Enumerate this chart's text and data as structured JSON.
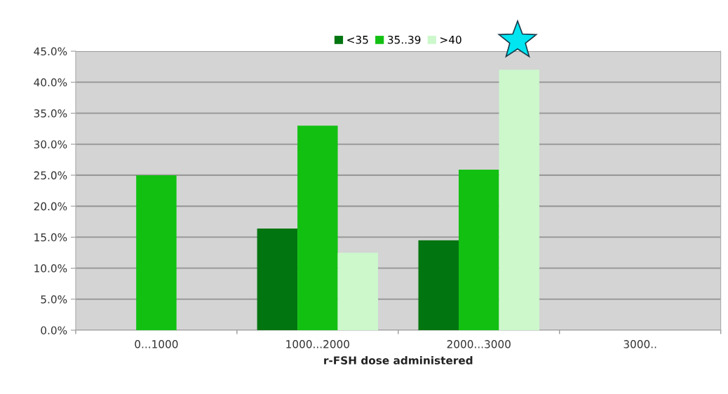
{
  "chart_data": {
    "type": "bar",
    "xlabel": "r-FSH dose administered",
    "categories": [
      "0...1000",
      "1000...2000",
      "2000...3000",
      "3000.."
    ],
    "series": [
      {
        "name": "<35",
        "color": "#007510",
        "values": [
          null,
          16.4,
          14.5,
          null
        ]
      },
      {
        "name": "35..39",
        "color": "#12c012",
        "values": [
          25.0,
          33.0,
          25.9,
          null
        ]
      },
      {
        "name": ">40",
        "color": "#ccf8cc",
        "values": [
          null,
          12.5,
          42.0,
          null
        ]
      }
    ],
    "ylim": [
      0,
      45
    ],
    "yticks": [
      {
        "value": 0,
        "label": "0.0%"
      },
      {
        "value": 5,
        "label": "5.0%"
      },
      {
        "value": 10,
        "label": "10.0%"
      },
      {
        "value": 15,
        "label": "15.0%"
      },
      {
        "value": 20,
        "label": "20.0%"
      },
      {
        "value": 25,
        "label": "25.0%"
      },
      {
        "value": 30,
        "label": "30.0%"
      },
      {
        "value": 35,
        "label": "35.0%"
      },
      {
        "value": 40,
        "label": "40.0%"
      },
      {
        "value": 45,
        "label": "45.0%"
      }
    ],
    "grid": "y",
    "legend": "top"
  }
}
